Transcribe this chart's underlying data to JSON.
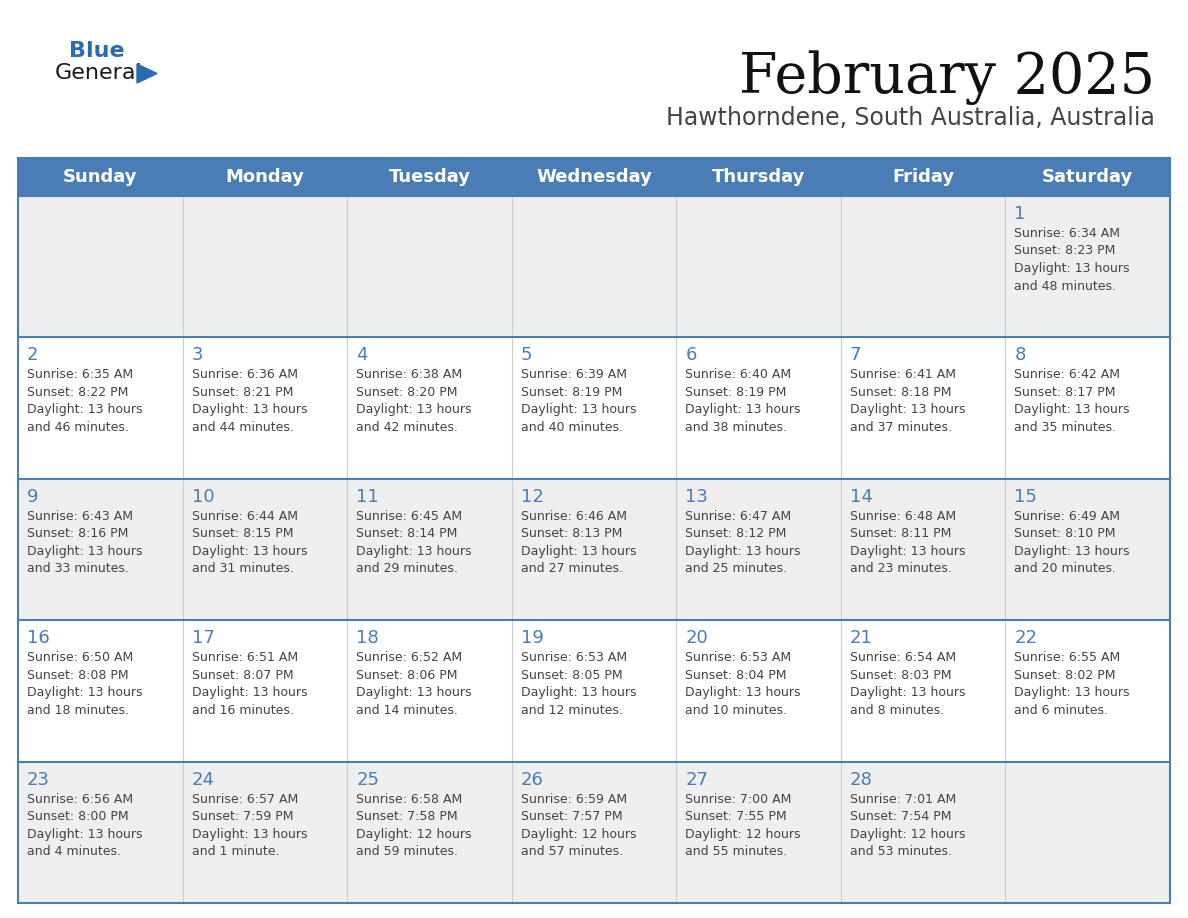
{
  "title": "February 2025",
  "subtitle": "Hawthorndene, South Australia, Australia",
  "days_of_week": [
    "Sunday",
    "Monday",
    "Tuesday",
    "Wednesday",
    "Thursday",
    "Friday",
    "Saturday"
  ],
  "header_bg": "#4a7db5",
  "header_text": "#ffffff",
  "cell_bg_odd": "#efefef",
  "cell_bg_even": "#ffffff",
  "border_color": "#4a7db5",
  "divider_color": "#cccccc",
  "text_color": "#444444",
  "title_color": "#111111",
  "subtitle_color": "#444444",
  "day_number_color": "#4a7db5",
  "logo_general_color": "#1a1a1a",
  "logo_blue_color": "#2b6cb0",
  "calendar_data": [
    [
      null,
      null,
      null,
      null,
      null,
      null,
      {
        "day": 1,
        "sunrise": "6:34 AM",
        "sunset": "8:23 PM",
        "daylight_line1": "Daylight: 13 hours",
        "daylight_line2": "and 48 minutes."
      }
    ],
    [
      {
        "day": 2,
        "sunrise": "6:35 AM",
        "sunset": "8:22 PM",
        "daylight_line1": "Daylight: 13 hours",
        "daylight_line2": "and 46 minutes."
      },
      {
        "day": 3,
        "sunrise": "6:36 AM",
        "sunset": "8:21 PM",
        "daylight_line1": "Daylight: 13 hours",
        "daylight_line2": "and 44 minutes."
      },
      {
        "day": 4,
        "sunrise": "6:38 AM",
        "sunset": "8:20 PM",
        "daylight_line1": "Daylight: 13 hours",
        "daylight_line2": "and 42 minutes."
      },
      {
        "day": 5,
        "sunrise": "6:39 AM",
        "sunset": "8:19 PM",
        "daylight_line1": "Daylight: 13 hours",
        "daylight_line2": "and 40 minutes."
      },
      {
        "day": 6,
        "sunrise": "6:40 AM",
        "sunset": "8:19 PM",
        "daylight_line1": "Daylight: 13 hours",
        "daylight_line2": "and 38 minutes."
      },
      {
        "day": 7,
        "sunrise": "6:41 AM",
        "sunset": "8:18 PM",
        "daylight_line1": "Daylight: 13 hours",
        "daylight_line2": "and 37 minutes."
      },
      {
        "day": 8,
        "sunrise": "6:42 AM",
        "sunset": "8:17 PM",
        "daylight_line1": "Daylight: 13 hours",
        "daylight_line2": "and 35 minutes."
      }
    ],
    [
      {
        "day": 9,
        "sunrise": "6:43 AM",
        "sunset": "8:16 PM",
        "daylight_line1": "Daylight: 13 hours",
        "daylight_line2": "and 33 minutes."
      },
      {
        "day": 10,
        "sunrise": "6:44 AM",
        "sunset": "8:15 PM",
        "daylight_line1": "Daylight: 13 hours",
        "daylight_line2": "and 31 minutes."
      },
      {
        "day": 11,
        "sunrise": "6:45 AM",
        "sunset": "8:14 PM",
        "daylight_line1": "Daylight: 13 hours",
        "daylight_line2": "and 29 minutes."
      },
      {
        "day": 12,
        "sunrise": "6:46 AM",
        "sunset": "8:13 PM",
        "daylight_line1": "Daylight: 13 hours",
        "daylight_line2": "and 27 minutes."
      },
      {
        "day": 13,
        "sunrise": "6:47 AM",
        "sunset": "8:12 PM",
        "daylight_line1": "Daylight: 13 hours",
        "daylight_line2": "and 25 minutes."
      },
      {
        "day": 14,
        "sunrise": "6:48 AM",
        "sunset": "8:11 PM",
        "daylight_line1": "Daylight: 13 hours",
        "daylight_line2": "and 23 minutes."
      },
      {
        "day": 15,
        "sunrise": "6:49 AM",
        "sunset": "8:10 PM",
        "daylight_line1": "Daylight: 13 hours",
        "daylight_line2": "and 20 minutes."
      }
    ],
    [
      {
        "day": 16,
        "sunrise": "6:50 AM",
        "sunset": "8:08 PM",
        "daylight_line1": "Daylight: 13 hours",
        "daylight_line2": "and 18 minutes."
      },
      {
        "day": 17,
        "sunrise": "6:51 AM",
        "sunset": "8:07 PM",
        "daylight_line1": "Daylight: 13 hours",
        "daylight_line2": "and 16 minutes."
      },
      {
        "day": 18,
        "sunrise": "6:52 AM",
        "sunset": "8:06 PM",
        "daylight_line1": "Daylight: 13 hours",
        "daylight_line2": "and 14 minutes."
      },
      {
        "day": 19,
        "sunrise": "6:53 AM",
        "sunset": "8:05 PM",
        "daylight_line1": "Daylight: 13 hours",
        "daylight_line2": "and 12 minutes."
      },
      {
        "day": 20,
        "sunrise": "6:53 AM",
        "sunset": "8:04 PM",
        "daylight_line1": "Daylight: 13 hours",
        "daylight_line2": "and 10 minutes."
      },
      {
        "day": 21,
        "sunrise": "6:54 AM",
        "sunset": "8:03 PM",
        "daylight_line1": "Daylight: 13 hours",
        "daylight_line2": "and 8 minutes."
      },
      {
        "day": 22,
        "sunrise": "6:55 AM",
        "sunset": "8:02 PM",
        "daylight_line1": "Daylight: 13 hours",
        "daylight_line2": "and 6 minutes."
      }
    ],
    [
      {
        "day": 23,
        "sunrise": "6:56 AM",
        "sunset": "8:00 PM",
        "daylight_line1": "Daylight: 13 hours",
        "daylight_line2": "and 4 minutes."
      },
      {
        "day": 24,
        "sunrise": "6:57 AM",
        "sunset": "7:59 PM",
        "daylight_line1": "Daylight: 13 hours",
        "daylight_line2": "and 1 minute."
      },
      {
        "day": 25,
        "sunrise": "6:58 AM",
        "sunset": "7:58 PM",
        "daylight_line1": "Daylight: 12 hours",
        "daylight_line2": "and 59 minutes."
      },
      {
        "day": 26,
        "sunrise": "6:59 AM",
        "sunset": "7:57 PM",
        "daylight_line1": "Daylight: 12 hours",
        "daylight_line2": "and 57 minutes."
      },
      {
        "day": 27,
        "sunrise": "7:00 AM",
        "sunset": "7:55 PM",
        "daylight_line1": "Daylight: 12 hours",
        "daylight_line2": "and 55 minutes."
      },
      {
        "day": 28,
        "sunrise": "7:01 AM",
        "sunset": "7:54 PM",
        "daylight_line1": "Daylight: 12 hours",
        "daylight_line2": "and 53 minutes."
      },
      null
    ]
  ]
}
